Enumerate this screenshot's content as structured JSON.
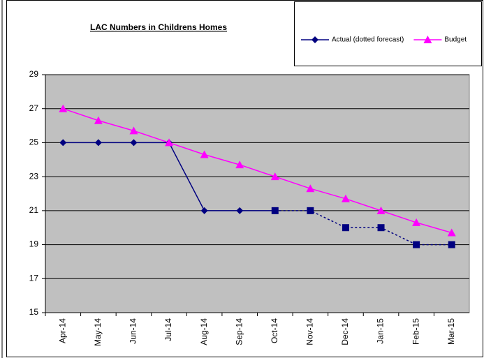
{
  "chart_data": {
    "type": "line",
    "title": "LAC Numbers in Childrens Homes",
    "categories": [
      "Apr-14",
      "May-14",
      "Jun-14",
      "Jul-14",
      "Aug-14",
      "Sep-14",
      "Oct-14",
      "Nov-14",
      "Dec-14",
      "Jan-15",
      "Feb-15",
      "Mar-15"
    ],
    "series": [
      {
        "name": "Actual (dotted forecast)",
        "color": "#000080",
        "marker": "diamond",
        "values": [
          25,
          25,
          25,
          25,
          21,
          21,
          21,
          null,
          null,
          null,
          null,
          null
        ]
      },
      {
        "color": "#000080",
        "marker": "square",
        "dashed": true,
        "values": [
          null,
          null,
          null,
          null,
          null,
          null,
          21,
          21,
          20,
          20,
          19,
          19
        ]
      },
      {
        "name": "Budget",
        "color": "#ff00ff",
        "marker": "triangle",
        "values": [
          27,
          26.3,
          25.7,
          25,
          24.3,
          23.7,
          23,
          22.3,
          21.7,
          21,
          20.3,
          19.7
        ]
      }
    ],
    "ylim": [
      15,
      29
    ],
    "yticks": [
      15,
      17,
      19,
      21,
      23,
      25,
      27,
      29
    ],
    "grid": true,
    "legend": "top-right",
    "plot_background": "#c0c0c0"
  }
}
